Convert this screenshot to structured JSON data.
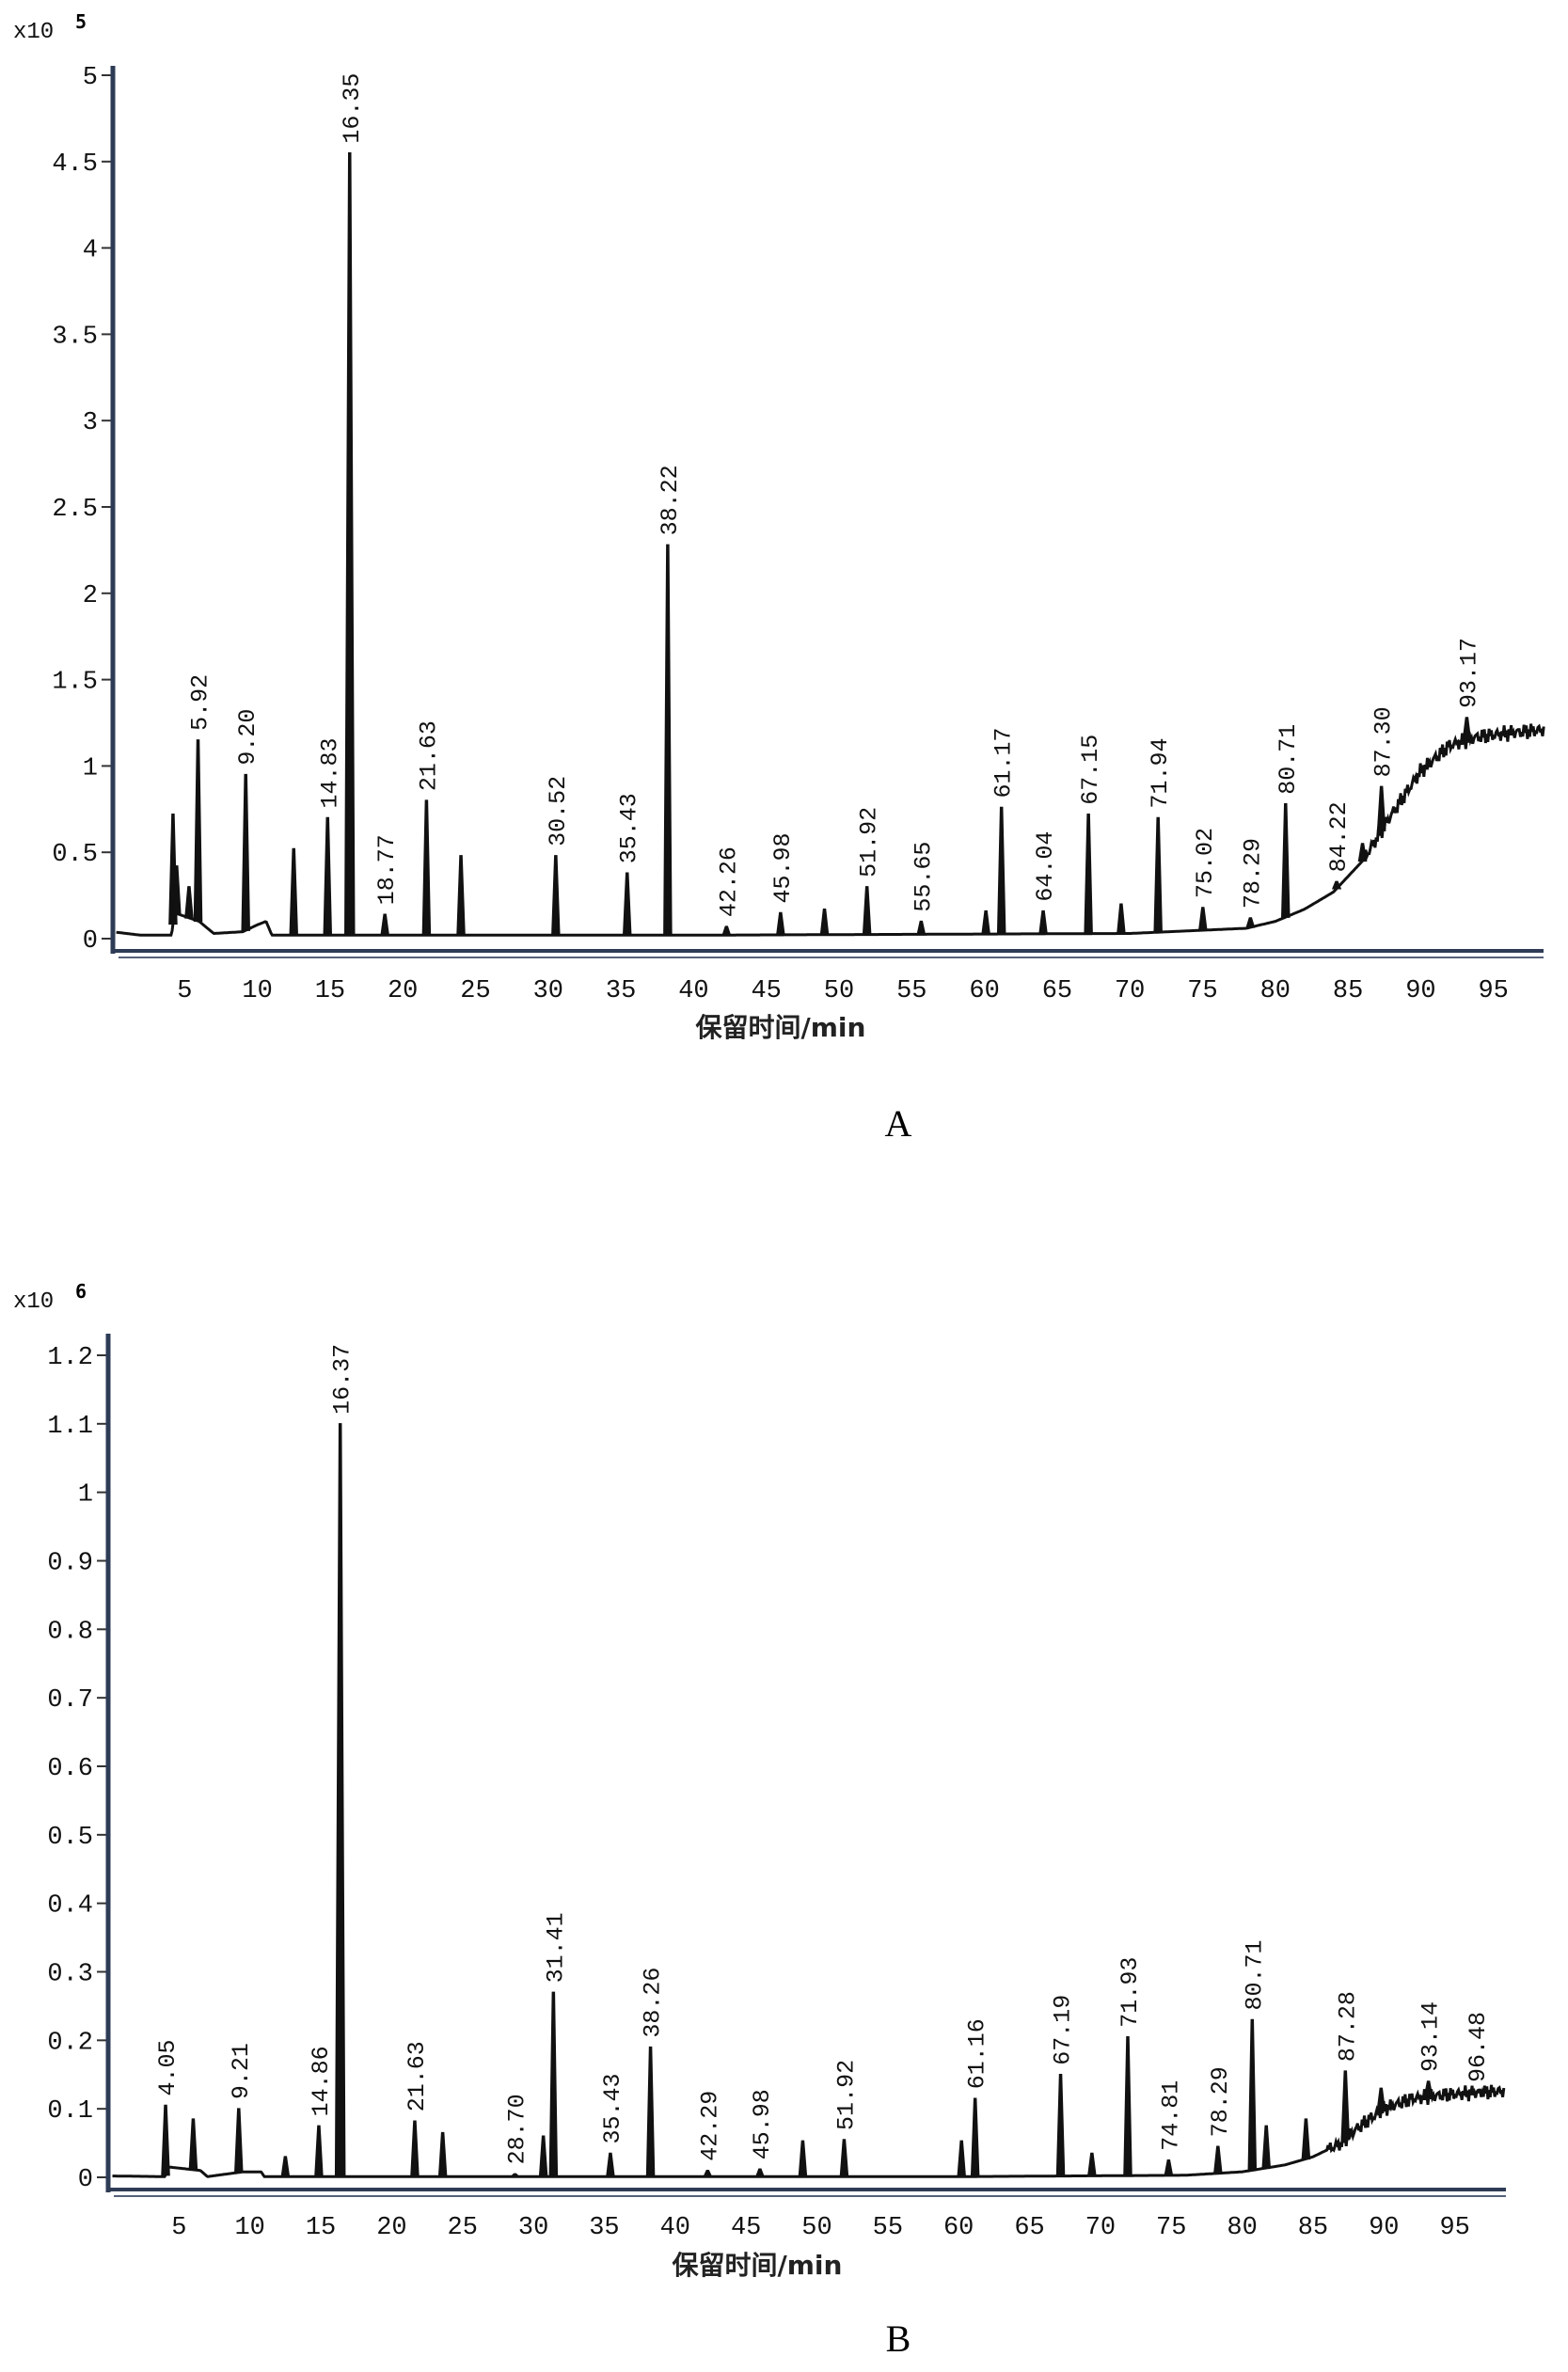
{
  "chart_data": [
    {
      "type": "line",
      "panel_label": "A",
      "multiplier": "x10",
      "multiplier_exp": "5",
      "xlabel": "保留时间/min",
      "ylabel": "",
      "xlim": [
        0,
        98.5
      ],
      "ylim": [
        0,
        5
      ],
      "x_ticks": [
        "5",
        "10",
        "15",
        "20",
        "25",
        "30",
        "35",
        "40",
        "45",
        "50",
        "55",
        "60",
        "65",
        "70",
        "75",
        "80",
        "85",
        "90",
        "95"
      ],
      "y_ticks": [
        "0",
        "0.5",
        "1",
        "1.5",
        "2",
        "2.5",
        "3",
        "3.5",
        "4",
        "4.5",
        "5"
      ],
      "y_tick_values": [
        0,
        0.5,
        1,
        1.5,
        2,
        2.5,
        3,
        3.5,
        4,
        4.5,
        5
      ],
      "baseline": [
        [
          0,
          0.04
        ],
        [
          2,
          0.02
        ],
        [
          4.1,
          0.02
        ],
        [
          4.3,
          0.15
        ],
        [
          6,
          0.1
        ],
        [
          7,
          0.03
        ],
        [
          9,
          0.04
        ],
        [
          10,
          0.08
        ],
        [
          10.6,
          0.1
        ],
        [
          11,
          0.02
        ],
        [
          40,
          0.02
        ],
        [
          70,
          0.03
        ],
        [
          78,
          0.06
        ],
        [
          80,
          0.1
        ],
        [
          82,
          0.17
        ],
        [
          84,
          0.27
        ],
        [
          86,
          0.45
        ],
        [
          88,
          0.72
        ],
        [
          90,
          0.97
        ],
        [
          92,
          1.12
        ],
        [
          94,
          1.17
        ],
        [
          96,
          1.19
        ],
        [
          98.5,
          1.21
        ]
      ],
      "peaks": [
        {
          "x": 4.2,
          "y": 0.72,
          "label": ""
        },
        {
          "x": 4.45,
          "y": 0.42,
          "label": ""
        },
        {
          "x": 5.3,
          "y": 0.3,
          "label": ""
        },
        {
          "x": 5.92,
          "y": 1.15,
          "label": "5.92"
        },
        {
          "x": 9.2,
          "y": 0.95,
          "label": "9.20"
        },
        {
          "x": 12.5,
          "y": 0.52,
          "label": ""
        },
        {
          "x": 14.83,
          "y": 0.7,
          "label": "14.83"
        },
        {
          "x": 16.35,
          "y": 4.55,
          "label": "16.35"
        },
        {
          "x": 18.77,
          "y": 0.14,
          "label": "18.77"
        },
        {
          "x": 21.63,
          "y": 0.8,
          "label": "21.63"
        },
        {
          "x": 24.0,
          "y": 0.48,
          "label": ""
        },
        {
          "x": 30.52,
          "y": 0.48,
          "label": "30.52"
        },
        {
          "x": 35.43,
          "y": 0.38,
          "label": "35.43"
        },
        {
          "x": 38.22,
          "y": 2.28,
          "label": "38.22"
        },
        {
          "x": 42.26,
          "y": 0.07,
          "label": "42.26"
        },
        {
          "x": 45.98,
          "y": 0.15,
          "label": "45.98"
        },
        {
          "x": 49.0,
          "y": 0.17,
          "label": ""
        },
        {
          "x": 51.92,
          "y": 0.3,
          "label": "51.92"
        },
        {
          "x": 55.65,
          "y": 0.1,
          "label": "55.65"
        },
        {
          "x": 60.1,
          "y": 0.16,
          "label": ""
        },
        {
          "x": 61.17,
          "y": 0.76,
          "label": "61.17"
        },
        {
          "x": 64.04,
          "y": 0.16,
          "label": "64.04"
        },
        {
          "x": 67.15,
          "y": 0.72,
          "label": "67.15"
        },
        {
          "x": 69.4,
          "y": 0.2,
          "label": ""
        },
        {
          "x": 71.94,
          "y": 0.7,
          "label": "71.94"
        },
        {
          "x": 75.02,
          "y": 0.18,
          "label": "75.02"
        },
        {
          "x": 78.29,
          "y": 0.12,
          "label": "78.29"
        },
        {
          "x": 80.71,
          "y": 0.78,
          "label": "80.71"
        },
        {
          "x": 84.22,
          "y": 0.33,
          "label": "84.22"
        },
        {
          "x": 86.0,
          "y": 0.55,
          "label": ""
        },
        {
          "x": 87.3,
          "y": 0.88,
          "label": "87.30"
        },
        {
          "x": 93.17,
          "y": 1.28,
          "label": "93.17"
        }
      ]
    },
    {
      "type": "line",
      "panel_label": "B",
      "multiplier": "x10",
      "multiplier_exp": "6",
      "xlabel": "保留时间/min",
      "ylabel": "",
      "xlim": [
        0,
        98.5
      ],
      "ylim": [
        0,
        1.2
      ],
      "x_ticks": [
        "5",
        "10",
        "15",
        "20",
        "25",
        "30",
        "35",
        "40",
        "45",
        "50",
        "55",
        "60",
        "65",
        "70",
        "75",
        "80",
        "85",
        "90",
        "95"
      ],
      "y_ticks": [
        "0",
        "0.1",
        "0.2",
        "0.3",
        "0.4",
        "0.5",
        "0.6",
        "0.7",
        "0.8",
        "0.9",
        "1",
        "1.1",
        "1.2"
      ],
      "y_tick_values": [
        0,
        0.1,
        0.2,
        0.3,
        0.4,
        0.5,
        0.6,
        0.7,
        0.8,
        0.9,
        1,
        1.1,
        1.2
      ],
      "baseline": [
        [
          0,
          0.002
        ],
        [
          4,
          0.001
        ],
        [
          4.3,
          0.015
        ],
        [
          6.5,
          0.01
        ],
        [
          7,
          0.001
        ],
        [
          9.5,
          0.008
        ],
        [
          10.8,
          0.008
        ],
        [
          11,
          0.001
        ],
        [
          60,
          0.001
        ],
        [
          76,
          0.003
        ],
        [
          80,
          0.008
        ],
        [
          83,
          0.018
        ],
        [
          85,
          0.03
        ],
        [
          87,
          0.05
        ],
        [
          88,
          0.07
        ],
        [
          90,
          0.1
        ],
        [
          92,
          0.115
        ],
        [
          94,
          0.12
        ],
        [
          96,
          0.123
        ],
        [
          98.5,
          0.126
        ]
      ],
      "peaks": [
        {
          "x": 4.05,
          "y": 0.105,
          "label": "4.05"
        },
        {
          "x": 6.0,
          "y": 0.085,
          "label": ""
        },
        {
          "x": 9.21,
          "y": 0.1,
          "label": "9.21"
        },
        {
          "x": 12.5,
          "y": 0.03,
          "label": ""
        },
        {
          "x": 14.86,
          "y": 0.075,
          "label": "14.86"
        },
        {
          "x": 16.37,
          "y": 1.1,
          "label": "16.37"
        },
        {
          "x": 21.63,
          "y": 0.082,
          "label": "21.63"
        },
        {
          "x": 23.6,
          "y": 0.065,
          "label": ""
        },
        {
          "x": 28.7,
          "y": 0.005,
          "label": "28.70"
        },
        {
          "x": 30.7,
          "y": 0.06,
          "label": ""
        },
        {
          "x": 31.41,
          "y": 0.27,
          "label": "31.41"
        },
        {
          "x": 35.43,
          "y": 0.035,
          "label": "35.43"
        },
        {
          "x": 38.26,
          "y": 0.19,
          "label": "38.26"
        },
        {
          "x": 42.29,
          "y": 0.01,
          "label": "42.29"
        },
        {
          "x": 45.98,
          "y": 0.012,
          "label": "45.98"
        },
        {
          "x": 49.0,
          "y": 0.053,
          "label": ""
        },
        {
          "x": 51.92,
          "y": 0.055,
          "label": "51.92"
        },
        {
          "x": 60.2,
          "y": 0.053,
          "label": ""
        },
        {
          "x": 61.16,
          "y": 0.115,
          "label": "61.16"
        },
        {
          "x": 67.19,
          "y": 0.15,
          "label": "67.19"
        },
        {
          "x": 69.4,
          "y": 0.035,
          "label": ""
        },
        {
          "x": 71.93,
          "y": 0.205,
          "label": "71.93"
        },
        {
          "x": 74.81,
          "y": 0.025,
          "label": "74.81"
        },
        {
          "x": 78.29,
          "y": 0.045,
          "label": "78.29"
        },
        {
          "x": 80.71,
          "y": 0.23,
          "label": "80.71"
        },
        {
          "x": 81.7,
          "y": 0.075,
          "label": ""
        },
        {
          "x": 84.5,
          "y": 0.085,
          "label": ""
        },
        {
          "x": 87.28,
          "y": 0.155,
          "label": "87.28"
        },
        {
          "x": 89.8,
          "y": 0.13,
          "label": ""
        },
        {
          "x": 93.14,
          "y": 0.14,
          "label": "93.14"
        },
        {
          "x": 96.48,
          "y": 0.125,
          "label": "96.48"
        }
      ]
    }
  ]
}
